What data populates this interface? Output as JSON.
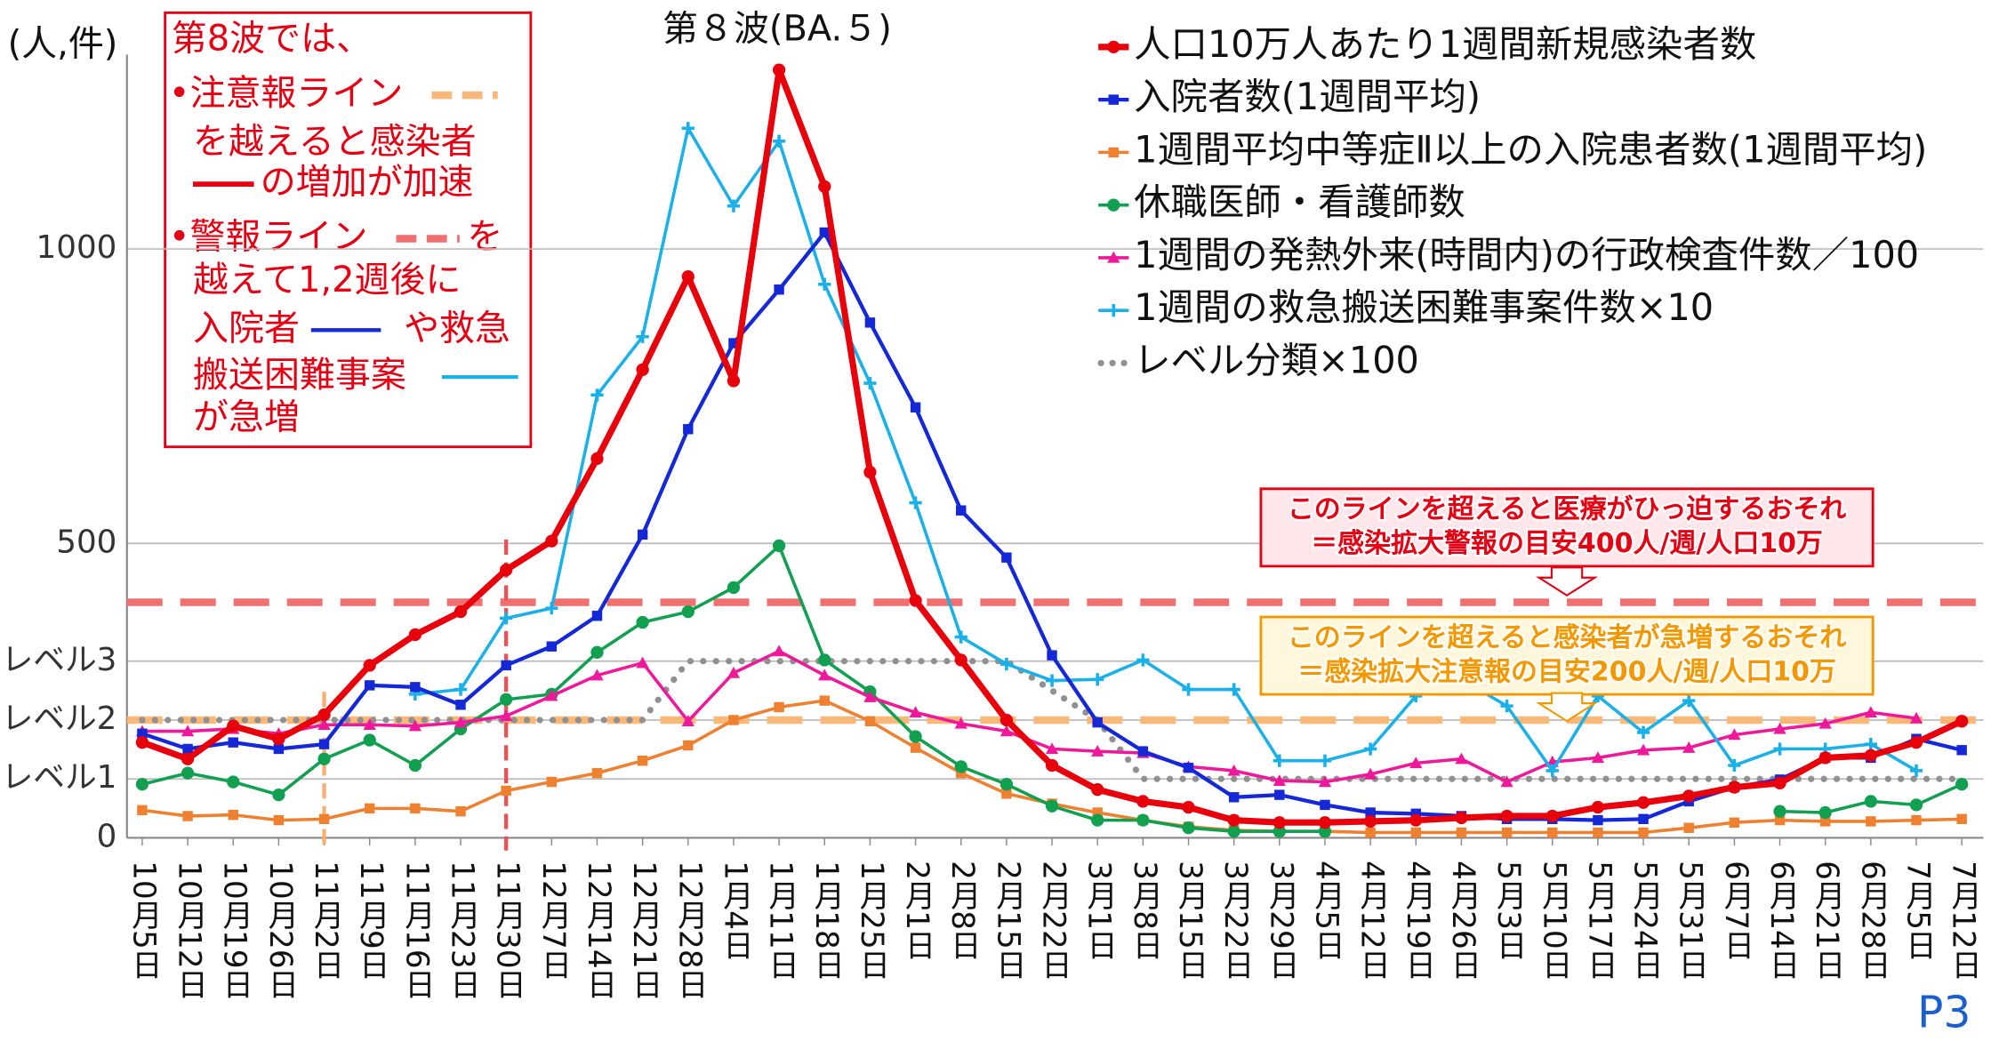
{
  "chart_data": {
    "type": "line",
    "title": "第８波(BA.５)",
    "y_label": "(人,件)",
    "page_label": "P3",
    "categories": [
      "10月5日",
      "10月12日",
      "10月19日",
      "10月26日",
      "11月2日",
      "11月9日",
      "11月16日",
      "11月23日",
      "11月30日",
      "12月7日",
      "12月14日",
      "12月21日",
      "12月28日",
      "1月4日",
      "1月11日",
      "1月18日",
      "1月25日",
      "2月1日",
      "2月8日",
      "2月15日",
      "2月22日",
      "3月1日",
      "3月8日",
      "3月15日",
      "3月22日",
      "3月29日",
      "4月5日",
      "4月12日",
      "4月19日",
      "4月26日",
      "5月3日",
      "5月10日",
      "5月17日",
      "5月24日",
      "5月31日",
      "6月7日",
      "6月14日",
      "6月21日",
      "6月28日",
      "7月5日",
      "7月12日"
    ],
    "ylim": [
      0,
      1330
    ],
    "yticks": [
      0,
      {
        "value": 100,
        "label": "レベル1"
      },
      {
        "value": 200,
        "label": "レベル2"
      },
      {
        "value": 300,
        "label": "レベル3"
      },
      500,
      1000
    ],
    "grid": true,
    "series": [
      {
        "name": "人口10万人あたり1週間新規感染者数",
        "color": "#e8000b",
        "marker": "circle",
        "width": 5,
        "values": [
          162,
          134,
          190,
          168,
          209,
          293,
          345,
          384,
          455,
          504,
          644,
          795,
          953,
          776,
          1304,
          1106,
          621,
          403,
          302,
          200,
          123,
          82,
          62,
          52,
          30,
          26,
          26,
          28,
          30,
          34,
          37,
          37,
          52,
          60,
          71,
          86,
          93,
          136,
          140,
          162,
          198
        ]
      },
      {
        "name": "入院者数(1週間平均)",
        "color": "#1428d8",
        "marker": "square",
        "width": 3,
        "values": [
          177,
          151,
          162,
          151,
          159,
          259,
          256,
          226,
          293,
          325,
          377,
          515,
          694,
          840,
          931,
          1028,
          875,
          731,
          556,
          476,
          310,
          196,
          147,
          119,
          69,
          73,
          56,
          43,
          41,
          37,
          32,
          32,
          30,
          32,
          62,
          86,
          99,
          136,
          136,
          168,
          149
        ]
      },
      {
        "name": "1週間平均中等症Ⅱ以上の入院患者数(1週間平均)",
        "color": "#ee8030",
        "marker": "square",
        "width": 2.5,
        "values": [
          47,
          37,
          39,
          30,
          32,
          50,
          50,
          45,
          80,
          95,
          110,
          131,
          157,
          200,
          222,
          233,
          198,
          153,
          110,
          75,
          58,
          43,
          30,
          19,
          13,
          11,
          11,
          9,
          9,
          9,
          9,
          9,
          9,
          9,
          17,
          26,
          30,
          28,
          28,
          30,
          32
        ]
      },
      {
        "name": "休職医師・看護師数",
        "color": "#10a050",
        "marker": "circle",
        "width": 2.5,
        "values": [
          91,
          110,
          95,
          73,
          134,
          166,
          123,
          185,
          235,
          244,
          315,
          366,
          384,
          425,
          496,
          302,
          248,
          172,
          121,
          91,
          54,
          30,
          30,
          17,
          11,
          11,
          11,
          null,
          null,
          null,
          null,
          null,
          null,
          null,
          null,
          null,
          45,
          43,
          62,
          56,
          91
        ]
      },
      {
        "name": "1週間の発熱外来(時間内)の行政検査件数／100",
        "color": "#f0189a",
        "marker": "triangle",
        "width": 2.5,
        "values": [
          181,
          181,
          185,
          177,
          192,
          192,
          190,
          196,
          207,
          241,
          276,
          297,
          198,
          280,
          317,
          276,
          239,
          213,
          194,
          181,
          151,
          147,
          144,
          121,
          114,
          97,
          95,
          108,
          127,
          134,
          95,
          129,
          136,
          149,
          153,
          175,
          185,
          194,
          213,
          203,
          null
        ]
      },
      {
        "name": "1週間の救急搬送困難事案件数×10",
        "color": "#1ab0e8",
        "marker": "plus",
        "width": 2.5,
        "values": [
          null,
          null,
          null,
          null,
          null,
          null,
          244,
          252,
          373,
          390,
          752,
          851,
          1205,
          1073,
          1183,
          940,
          772,
          569,
          341,
          295,
          267,
          269,
          302,
          252,
          252,
          131,
          131,
          151,
          241,
          269,
          224,
          114,
          241,
          179,
          233,
          123,
          151,
          151,
          159,
          114,
          null
        ]
      },
      {
        "name": "レベル分類×100",
        "color": "#909090",
        "marker": "dot",
        "width": 5,
        "values": [
          200,
          200,
          200,
          200,
          200,
          200,
          200,
          200,
          200,
          200,
          200,
          200,
          300,
          300,
          300,
          300,
          300,
          300,
          300,
          300,
          250,
          200,
          100,
          100,
          100,
          100,
          100,
          100,
          100,
          100,
          100,
          100,
          100,
          100,
          100,
          100,
          100,
          100,
          100,
          100,
          100
        ]
      }
    ],
    "hlines": [
      {
        "value": 400,
        "color": "#f07070"
      },
      {
        "value": 200,
        "color": "#f8b878"
      }
    ],
    "vlines": [
      {
        "index": 4,
        "color": "#f8b070"
      },
      {
        "index": 8,
        "color": "#f05050"
      }
    ],
    "note_box": [
      "第8波では、",
      "•注意報ライン",
      "を越えると感染者",
      "の増加が加速",
      "•警報ライン",
      "を",
      "越えて1,2週後に",
      "入院者",
      "や救急",
      "搬送困難事案",
      "が急増"
    ],
    "callouts": [
      {
        "lines": [
          "このラインを超えると医療がひっ迫するおそれ",
          "＝感染拡大警報の目安400人/週/人口10万"
        ],
        "color": "#e60012"
      },
      {
        "lines": [
          "このラインを超えると感染者が急増するおそれ",
          "＝感染拡大注意報の目安200人/週/人口10万"
        ],
        "color": "#f39800"
      }
    ]
  }
}
